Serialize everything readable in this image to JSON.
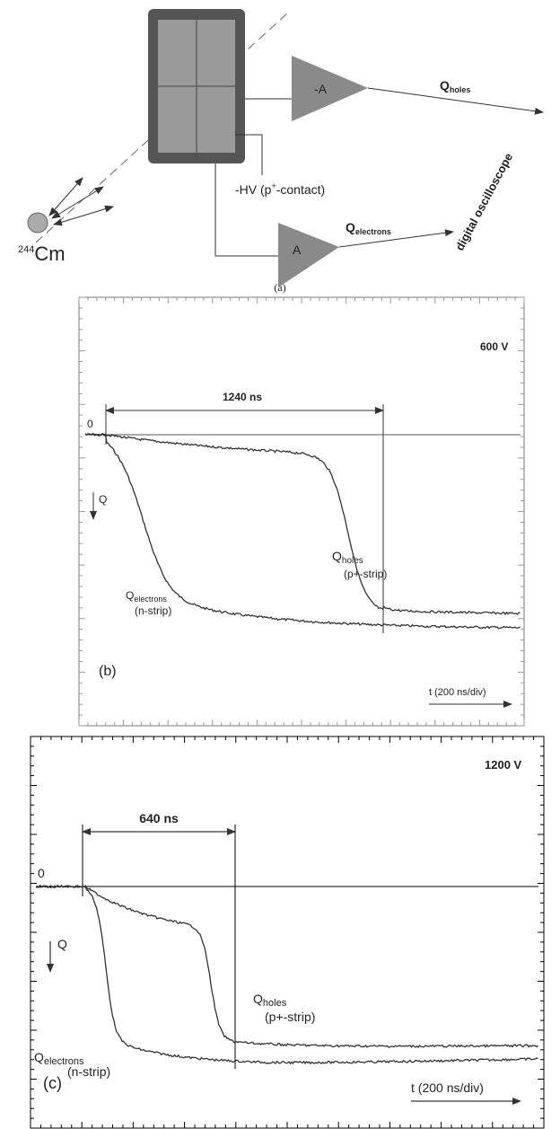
{
  "panel_a": {
    "caption": "(a)",
    "source": {
      "mass": "244",
      "element": "Cm"
    },
    "hv": {
      "prefix": "-HV (p",
      "sup": "+",
      "suffix": "-contact)"
    },
    "amp_holes": "-A",
    "amp_electrons": "A",
    "out_holes": {
      "symbol": "Q",
      "subscript": "holes"
    },
    "out_electrons": {
      "symbol": "Q",
      "subscript": "electrons"
    },
    "instrument": "digital oscilloscope"
  },
  "panel_b": {
    "voltage": "600 V",
    "interval": "1240 ns",
    "zero": "0",
    "axis": "Q",
    "holes": {
      "symbol": "Q",
      "subscript": "holes",
      "note": "(p+-strip)"
    },
    "electrons": {
      "symbol": "Q",
      "subscript": "electrons",
      "note": "(n-strip)"
    },
    "label": "(b)",
    "time_scale": "t (200 ns/div)"
  },
  "panel_c": {
    "voltage": "1200 V",
    "interval": "640 ns",
    "zero": "0",
    "axis": "Q",
    "holes": {
      "symbol": "Q",
      "subscript": "holes",
      "note": "(p+-strip)"
    },
    "electrons": {
      "symbol": "Q",
      "subscript": "electrons",
      "note": "(n-strip)"
    },
    "label": "(c)",
    "time_scale": "t (200 ns/div)"
  }
}
